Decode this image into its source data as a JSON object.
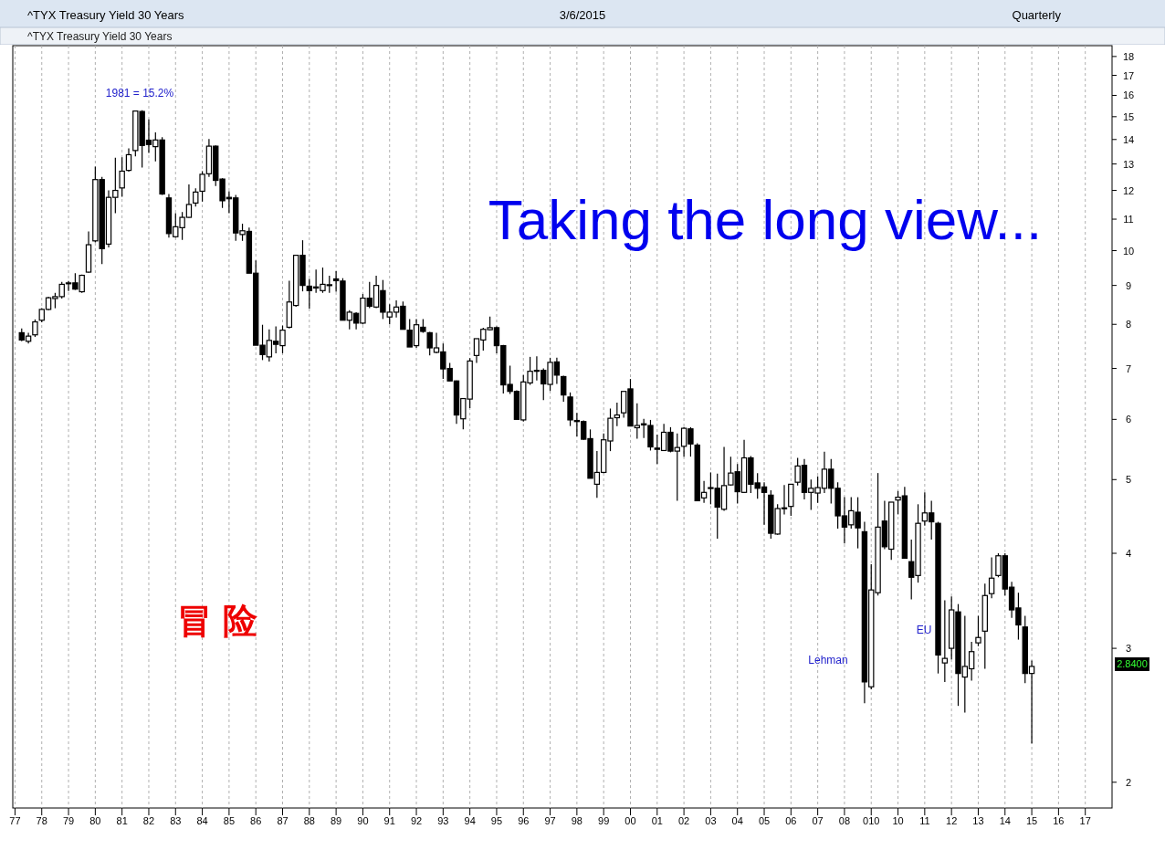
{
  "chart_data": {
    "type": "candlestick",
    "title": "^TYX Treasury Yield 30 Years",
    "subtitle": "^TYX Treasury Yield 30 Years",
    "annotations": [
      "3/6/2015",
      "Quarterly",
      "Taking the long view...",
      "冒险",
      "1981 = 15.2%",
      "Lehman",
      "EU",
      "2.8400"
    ],
    "x": [
      "1977-04",
      "1977-07",
      "1977-10",
      "1978-01",
      "1978-04",
      "1978-07",
      "1978-10",
      "1979-01",
      "1979-04",
      "1979-07",
      "1979-10",
      "1980-01",
      "1980-04",
      "1980-07",
      "1980-10",
      "1981-01",
      "1981-04",
      "1981-07",
      "1981-10",
      "1982-01",
      "1982-04",
      "1982-07",
      "1982-10",
      "1983-01",
      "1983-04",
      "1983-07",
      "1983-10",
      "1984-01",
      "1984-04",
      "1984-07",
      "1984-10",
      "1985-01",
      "1985-04",
      "1985-07",
      "1985-10",
      "1986-01",
      "1986-04",
      "1986-07",
      "1986-10",
      "1987-01",
      "1987-04",
      "1987-07",
      "1987-10",
      "1988-01",
      "1988-04",
      "1988-07",
      "1988-10",
      "1989-01",
      "1989-04",
      "1989-07",
      "1989-10",
      "1990-01",
      "1990-04",
      "1990-07",
      "1990-10",
      "1991-01",
      "1991-04",
      "1991-07",
      "1991-10",
      "1992-01",
      "1992-04",
      "1992-07",
      "1992-10",
      "1993-01",
      "1993-04",
      "1993-07",
      "1993-10",
      "1994-01",
      "1994-04",
      "1994-07",
      "1994-10",
      "1995-01",
      "1995-04",
      "1995-07",
      "1995-10",
      "1996-01",
      "1996-04",
      "1996-07",
      "1996-10",
      "1997-01",
      "1997-04",
      "1997-07",
      "1997-10",
      "1998-01",
      "1998-04",
      "1998-07",
      "1998-10",
      "1999-01",
      "1999-04",
      "1999-07",
      "1999-10",
      "2000-01",
      "2000-04",
      "2000-07",
      "2000-10",
      "2001-01",
      "2001-04",
      "2001-07",
      "2001-10",
      "2002-01",
      "2002-04",
      "2002-07",
      "2002-10",
      "2003-01",
      "2003-04",
      "2003-07",
      "2003-10",
      "2004-01",
      "2004-04",
      "2004-07",
      "2004-10",
      "2005-01",
      "2005-04",
      "2005-07",
      "2005-10",
      "2006-01",
      "2006-04",
      "2006-07",
      "2006-10",
      "2007-01",
      "2007-04",
      "2007-07",
      "2007-10",
      "2008-01",
      "2008-04",
      "2008-07",
      "2008-10",
      "2009-01",
      "2009-04",
      "2009-07",
      "2009-10",
      "2010-01",
      "2010-04",
      "2010-07",
      "2010-10",
      "2011-01",
      "2011-04",
      "2011-07",
      "2011-10",
      "2012-01",
      "2012-04",
      "2012-07",
      "2012-10",
      "2013-01",
      "2013-04",
      "2013-07",
      "2013-10",
      "2014-01",
      "2014-04",
      "2014-07",
      "2014-10",
      "2015-01"
    ],
    "ohlc": [
      [
        7.8,
        7.9,
        7.6,
        7.63
      ],
      [
        7.6,
        7.8,
        7.55,
        7.72
      ],
      [
        7.75,
        8.12,
        7.7,
        8.06
      ],
      [
        8.1,
        8.4,
        8.05,
        8.37
      ],
      [
        8.37,
        8.7,
        8.35,
        8.67
      ],
      [
        8.65,
        8.8,
        8.4,
        8.7
      ],
      [
        8.7,
        9.1,
        8.65,
        9.03
      ],
      [
        9.05,
        9.12,
        8.85,
        9.07
      ],
      [
        9.07,
        9.34,
        8.88,
        8.9
      ],
      [
        8.83,
        9.3,
        8.8,
        9.28
      ],
      [
        9.37,
        10.6,
        9.35,
        10.18
      ],
      [
        10.3,
        12.9,
        10.25,
        12.4
      ],
      [
        12.4,
        12.5,
        9.6,
        10.06
      ],
      [
        10.2,
        12.0,
        10.1,
        11.75
      ],
      [
        11.75,
        13.25,
        11.2,
        12.0
      ],
      [
        12.09,
        13.27,
        11.77,
        12.72
      ],
      [
        12.75,
        13.63,
        12.7,
        13.37
      ],
      [
        13.54,
        15.26,
        13.3,
        15.26
      ],
      [
        15.24,
        15.3,
        12.86,
        13.75
      ],
      [
        13.97,
        14.88,
        13.44,
        13.79
      ],
      [
        13.7,
        14.3,
        13.1,
        13.98
      ],
      [
        13.98,
        14.1,
        11.84,
        11.87
      ],
      [
        11.73,
        11.87,
        10.4,
        10.53
      ],
      [
        10.43,
        11.2,
        10.4,
        10.75
      ],
      [
        10.72,
        11.24,
        10.33,
        11.06
      ],
      [
        11.06,
        12.22,
        11.05,
        11.5
      ],
      [
        11.55,
        12.08,
        11.43,
        11.94
      ],
      [
        11.97,
        12.72,
        11.6,
        12.6
      ],
      [
        12.62,
        14.02,
        12.5,
        13.72
      ],
      [
        13.72,
        13.75,
        12.16,
        12.37
      ],
      [
        12.42,
        12.45,
        11.38,
        11.63
      ],
      [
        11.75,
        11.97,
        11.2,
        11.7
      ],
      [
        11.73,
        11.84,
        10.3,
        10.55
      ],
      [
        10.5,
        10.85,
        10.3,
        10.62
      ],
      [
        10.6,
        10.72,
        9.34,
        9.34
      ],
      [
        9.34,
        9.71,
        7.51,
        7.51
      ],
      [
        7.51,
        7.99,
        7.18,
        7.3
      ],
      [
        7.25,
        7.88,
        7.15,
        7.62
      ],
      [
        7.6,
        7.95,
        7.33,
        7.53
      ],
      [
        7.5,
        7.97,
        7.33,
        7.86
      ],
      [
        7.93,
        9.13,
        7.9,
        8.56
      ],
      [
        8.47,
        9.86,
        8.44,
        9.86
      ],
      [
        9.86,
        10.32,
        8.84,
        9.0
      ],
      [
        8.98,
        9.18,
        8.39,
        8.86
      ],
      [
        8.93,
        9.44,
        8.8,
        8.96
      ],
      [
        8.86,
        9.5,
        8.8,
        9.03
      ],
      [
        9.0,
        9.27,
        8.8,
        9.02
      ],
      [
        9.18,
        9.4,
        8.83,
        9.13
      ],
      [
        9.12,
        9.2,
        8.1,
        8.1
      ],
      [
        8.1,
        8.35,
        7.88,
        8.3
      ],
      [
        8.27,
        8.3,
        7.88,
        8.03
      ],
      [
        8.03,
        8.77,
        8.0,
        8.66
      ],
      [
        8.66,
        9.1,
        8.4,
        8.45
      ],
      [
        8.43,
        9.27,
        8.4,
        9.0
      ],
      [
        8.86,
        9.15,
        8.13,
        8.3
      ],
      [
        8.18,
        8.5,
        8.0,
        8.3
      ],
      [
        8.3,
        8.6,
        8.17,
        8.43
      ],
      [
        8.45,
        8.57,
        7.88,
        7.88
      ],
      [
        7.86,
        8.13,
        7.47,
        7.47
      ],
      [
        7.5,
        8.13,
        7.45,
        7.99
      ],
      [
        7.93,
        8.13,
        7.8,
        7.83
      ],
      [
        7.8,
        7.82,
        7.28,
        7.45
      ],
      [
        7.35,
        7.8,
        7.33,
        7.45
      ],
      [
        7.36,
        7.55,
        6.78,
        6.99
      ],
      [
        7.0,
        7.12,
        6.74,
        6.74
      ],
      [
        6.74,
        6.75,
        5.92,
        6.08
      ],
      [
        6.01,
        6.39,
        5.82,
        6.39
      ],
      [
        6.38,
        7.22,
        6.21,
        7.16
      ],
      [
        7.28,
        7.66,
        7.12,
        7.66
      ],
      [
        7.63,
        7.92,
        7.39,
        7.88
      ],
      [
        7.87,
        8.19,
        7.85,
        7.92
      ],
      [
        7.92,
        7.95,
        7.33,
        7.5
      ],
      [
        7.5,
        7.52,
        6.49,
        6.66
      ],
      [
        6.67,
        7.06,
        6.48,
        6.53
      ],
      [
        6.53,
        6.55,
        6.0,
        6.0
      ],
      [
        5.99,
        6.86,
        5.96,
        6.72
      ],
      [
        6.7,
        7.25,
        6.66,
        6.94
      ],
      [
        6.94,
        7.26,
        6.75,
        6.96
      ],
      [
        6.96,
        7.0,
        6.36,
        6.68
      ],
      [
        6.67,
        7.23,
        6.54,
        7.13
      ],
      [
        7.14,
        7.23,
        6.68,
        6.86
      ],
      [
        6.83,
        6.85,
        6.33,
        6.46
      ],
      [
        6.42,
        6.51,
        5.88,
        5.99
      ],
      [
        5.98,
        6.12,
        5.7,
        5.96
      ],
      [
        5.96,
        5.98,
        5.64,
        5.65
      ],
      [
        5.66,
        5.82,
        5.02,
        5.02
      ],
      [
        4.93,
        5.45,
        4.73,
        5.11
      ],
      [
        5.11,
        5.75,
        5.1,
        5.64
      ],
      [
        5.62,
        6.2,
        5.45,
        6.02
      ],
      [
        6.03,
        6.31,
        5.88,
        6.08
      ],
      [
        6.12,
        6.53,
        6.03,
        6.53
      ],
      [
        6.58,
        6.78,
        5.88,
        5.88
      ],
      [
        5.85,
        6.3,
        5.66,
        5.89
      ],
      [
        5.9,
        6.01,
        5.67,
        5.92
      ],
      [
        5.89,
        5.99,
        5.46,
        5.52
      ],
      [
        5.5,
        5.73,
        5.24,
        5.48
      ],
      [
        5.46,
        5.92,
        5.45,
        5.77
      ],
      [
        5.77,
        5.86,
        5.43,
        5.45
      ],
      [
        5.45,
        5.75,
        4.69,
        5.51
      ],
      [
        5.53,
        5.86,
        5.36,
        5.84
      ],
      [
        5.83,
        5.86,
        5.36,
        5.57
      ],
      [
        5.55,
        5.58,
        4.69,
        4.69
      ],
      [
        4.73,
        4.98,
        4.66,
        4.81
      ],
      [
        4.87,
        5.11,
        4.64,
        4.88
      ],
      [
        4.87,
        5.09,
        4.18,
        4.6
      ],
      [
        4.57,
        5.52,
        4.55,
        4.91
      ],
      [
        4.92,
        5.36,
        4.91,
        5.1
      ],
      [
        5.12,
        5.24,
        4.65,
        4.82
      ],
      [
        4.81,
        5.64,
        4.8,
        5.34
      ],
      [
        5.34,
        5.37,
        4.8,
        4.93
      ],
      [
        4.95,
        5.1,
        4.72,
        4.87
      ],
      [
        4.89,
        4.96,
        4.36,
        4.81
      ],
      [
        4.77,
        4.84,
        4.18,
        4.25
      ],
      [
        4.24,
        4.64,
        4.23,
        4.58
      ],
      [
        4.58,
        4.92,
        4.5,
        4.59
      ],
      [
        4.61,
        4.93,
        4.48,
        4.93
      ],
      [
        4.96,
        5.34,
        4.91,
        5.21
      ],
      [
        5.22,
        5.32,
        4.71,
        4.81
      ],
      [
        4.81,
        5.0,
        4.56,
        4.87
      ],
      [
        4.8,
        5.05,
        4.66,
        4.88
      ],
      [
        4.87,
        5.44,
        4.8,
        5.16
      ],
      [
        5.16,
        5.32,
        4.65,
        4.87
      ],
      [
        4.87,
        4.96,
        4.31,
        4.48
      ],
      [
        4.48,
        4.74,
        4.12,
        4.33
      ],
      [
        4.36,
        4.74,
        4.31,
        4.55
      ],
      [
        4.53,
        4.74,
        4.06,
        4.32
      ],
      [
        4.27,
        4.4,
        2.54,
        2.71
      ],
      [
        2.67,
        3.87,
        2.65,
        3.58
      ],
      [
        3.55,
        5.1,
        3.52,
        4.33
      ],
      [
        4.41,
        4.69,
        4.05,
        4.08
      ],
      [
        4.05,
        4.67,
        3.92,
        4.67
      ],
      [
        4.7,
        4.83,
        4.5,
        4.74
      ],
      [
        4.76,
        4.89,
        3.94,
        3.94
      ],
      [
        3.9,
        4.17,
        3.48,
        3.72
      ],
      [
        3.74,
        4.64,
        3.66,
        4.38
      ],
      [
        4.41,
        4.81,
        4.35,
        4.52
      ],
      [
        4.52,
        4.69,
        4.17,
        4.4
      ],
      [
        4.38,
        4.4,
        2.78,
        2.94
      ],
      [
        2.87,
        3.47,
        2.71,
        2.91
      ],
      [
        3.0,
        3.51,
        2.9,
        3.37
      ],
      [
        3.35,
        3.43,
        2.52,
        2.78
      ],
      [
        2.75,
        3.31,
        2.47,
        2.84
      ],
      [
        2.82,
        3.06,
        2.72,
        2.97
      ],
      [
        3.05,
        3.31,
        3.02,
        3.1
      ],
      [
        3.16,
        3.65,
        2.82,
        3.52
      ],
      [
        3.54,
        3.95,
        3.49,
        3.71
      ],
      [
        3.74,
        4.0,
        3.72,
        3.97
      ],
      [
        3.97,
        4.0,
        3.52,
        3.59
      ],
      [
        3.61,
        3.67,
        3.29,
        3.37
      ],
      [
        3.39,
        3.55,
        3.08,
        3.22
      ],
      [
        3.2,
        3.31,
        2.7,
        2.78
      ],
      [
        2.78,
        2.89,
        2.25,
        2.84
      ]
    ],
    "xlim": [
      "1976-12",
      "2018-01"
    ],
    "xticks": [
      {
        "value": "1977",
        "label": "77"
      },
      {
        "value": "1978",
        "label": "78"
      },
      {
        "value": "1979",
        "label": "79"
      },
      {
        "value": "1980",
        "label": "80"
      },
      {
        "value": "1981",
        "label": "81"
      },
      {
        "value": "1982",
        "label": "82"
      },
      {
        "value": "1983",
        "label": "83"
      },
      {
        "value": "1984",
        "label": "84"
      },
      {
        "value": "1985",
        "label": "85"
      },
      {
        "value": "1986",
        "label": "86"
      },
      {
        "value": "1987",
        "label": "87"
      },
      {
        "value": "1988",
        "label": "88"
      },
      {
        "value": "1989",
        "label": "89"
      },
      {
        "value": "1990",
        "label": "90"
      },
      {
        "value": "1991",
        "label": "91"
      },
      {
        "value": "1992",
        "label": "92"
      },
      {
        "value": "1993",
        "label": "93"
      },
      {
        "value": "1994",
        "label": "94"
      },
      {
        "value": "1995",
        "label": "95"
      },
      {
        "value": "1996",
        "label": "96"
      },
      {
        "value": "1997",
        "label": "97"
      },
      {
        "value": "1998",
        "label": "98"
      },
      {
        "value": "1999",
        "label": "99"
      },
      {
        "value": "2000",
        "label": "00"
      },
      {
        "value": "2001",
        "label": "01"
      },
      {
        "value": "2002",
        "label": "02"
      },
      {
        "value": "2003",
        "label": "03"
      },
      {
        "value": "2004",
        "label": "04"
      },
      {
        "value": "2005",
        "label": "05"
      },
      {
        "value": "2006",
        "label": "06"
      },
      {
        "value": "2007",
        "label": "07"
      },
      {
        "value": "2008",
        "label": "08"
      },
      {
        "value": "2009",
        "label": "010"
      },
      {
        "value": "2010",
        "label": "10"
      },
      {
        "value": "2011",
        "label": "11"
      },
      {
        "value": "2012",
        "label": "12"
      },
      {
        "value": "2013",
        "label": "13"
      },
      {
        "value": "2014",
        "label": "14"
      },
      {
        "value": "2015",
        "label": "15"
      },
      {
        "value": "2016",
        "label": "16"
      },
      {
        "value": "2017",
        "label": "17"
      }
    ],
    "ylim": [
      1.85,
      18.6
    ],
    "yticks": [
      2,
      3,
      4,
      5,
      6,
      7,
      8,
      9,
      10,
      11,
      12,
      13,
      14,
      15,
      16,
      17,
      18
    ],
    "log": true,
    "grid": "x"
  }
}
